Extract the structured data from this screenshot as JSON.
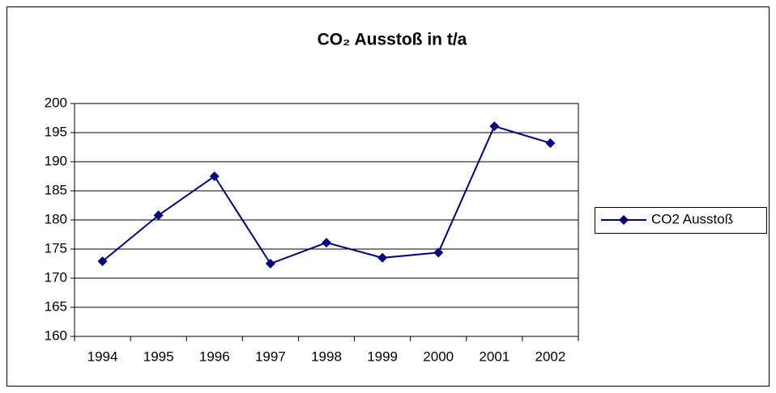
{
  "chart_data": {
    "type": "line",
    "title": "CO₂ Ausstoß in t/a",
    "categories": [
      "1994",
      "1995",
      "1996",
      "1997",
      "1998",
      "1999",
      "2000",
      "2001",
      "2002"
    ],
    "series": [
      {
        "name": "CO2 Ausstoß",
        "color": "#000080",
        "values": [
          172.9,
          180.8,
          187.5,
          172.5,
          176.1,
          173.5,
          174.4,
          196.1,
          193.2
        ]
      }
    ],
    "ylim": [
      160,
      200
    ],
    "yticks": [
      160,
      165,
      170,
      175,
      180,
      185,
      190,
      195,
      200
    ],
    "grid": true,
    "legend": "right"
  }
}
